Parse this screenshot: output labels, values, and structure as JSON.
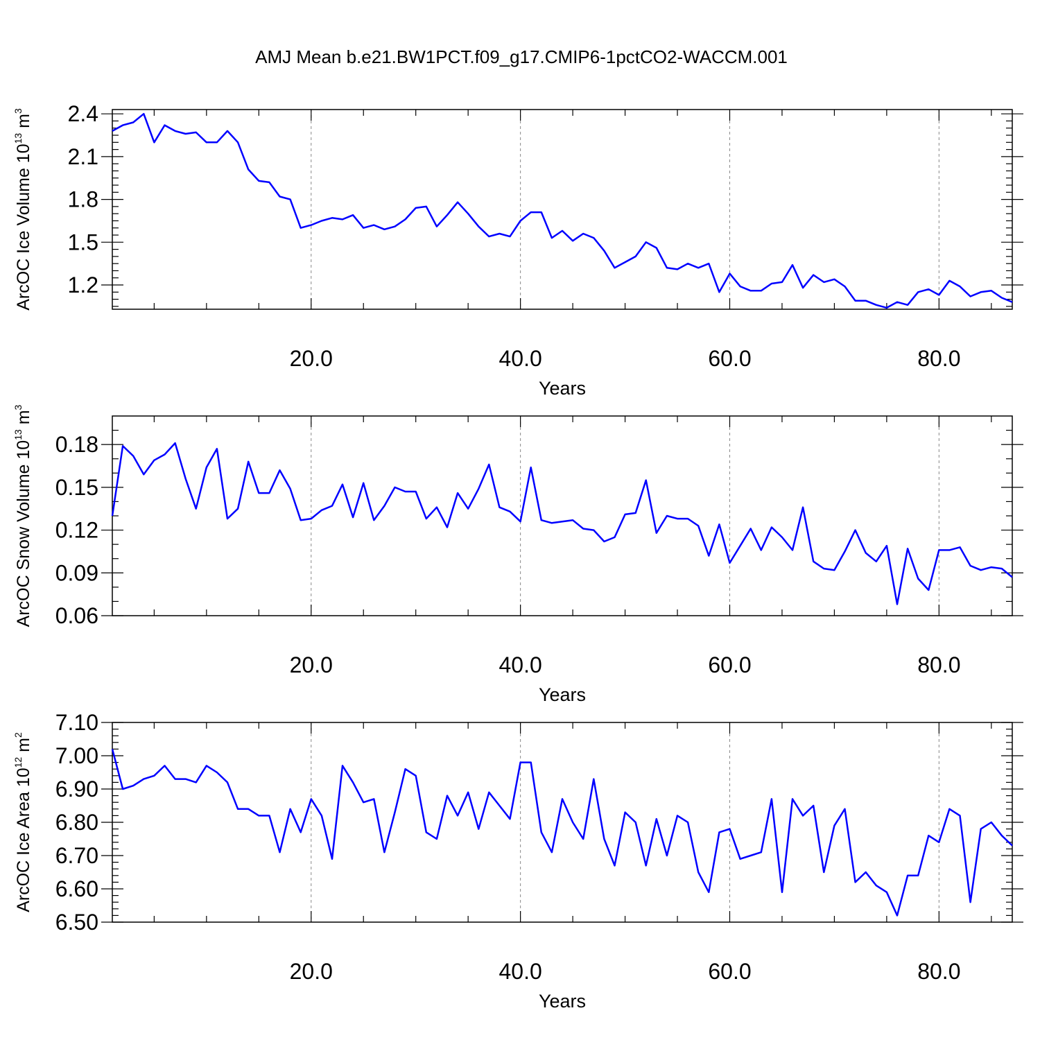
{
  "title": "AMJ Mean b.e21.BW1PCT.f09_g17.CMIP6-1pctCO2-WACCM.001",
  "colors": {
    "line": "#0000ff",
    "axis": "#000000",
    "grid": "#888888"
  },
  "chart_data": [
    {
      "type": "line",
      "xlabel": "Years",
      "ylabel": {
        "main": "ArcOC Ice Volume 10",
        "exp": "13",
        "unit": " m",
        "unit_exp": "3"
      },
      "xlim": [
        1,
        87
      ],
      "ylim": [
        1.03,
        2.43
      ],
      "xticks": [
        20,
        40,
        60,
        80
      ],
      "xtick_labels": [
        "20.0",
        "40.0",
        "60.0",
        "80.0"
      ],
      "yticks": [
        1.2,
        1.5,
        1.8,
        2.1,
        2.4
      ],
      "ytick_labels": [
        "1.2",
        "1.5",
        "1.8",
        "2.1",
        "2.4"
      ],
      "minor_yticks": [
        1.05,
        1.1,
        1.15,
        1.25,
        1.3,
        1.35,
        1.4,
        1.45,
        1.55,
        1.6,
        1.65,
        1.7,
        1.75,
        1.85,
        1.9,
        1.95,
        2.0,
        2.05,
        2.15,
        2.2,
        2.25,
        2.3,
        2.35
      ],
      "grid": "vertical dashed at major x ticks",
      "series": [
        {
          "x_start": 1,
          "values": [
            2.28,
            2.32,
            2.34,
            2.4,
            2.2,
            2.32,
            2.28,
            2.26,
            2.27,
            2.2,
            2.2,
            2.28,
            2.2,
            2.01,
            1.93,
            1.92,
            1.82,
            1.8,
            1.6,
            1.62,
            1.65,
            1.67,
            1.66,
            1.69,
            1.6,
            1.62,
            1.59,
            1.61,
            1.66,
            1.74,
            1.75,
            1.61,
            1.69,
            1.78,
            1.7,
            1.61,
            1.54,
            1.56,
            1.54,
            1.65,
            1.71,
            1.71,
            1.53,
            1.58,
            1.51,
            1.56,
            1.53,
            1.44,
            1.32,
            1.36,
            1.4,
            1.5,
            1.46,
            1.32,
            1.31,
            1.35,
            1.32,
            1.35,
            1.15,
            1.28,
            1.19,
            1.16,
            1.16,
            1.21,
            1.22,
            1.34,
            1.18,
            1.27,
            1.22,
            1.24,
            1.19,
            1.09,
            1.09,
            1.06,
            1.04,
            1.08,
            1.06,
            1.15,
            1.17,
            1.13,
            1.23,
            1.19,
            1.12,
            1.15,
            1.16,
            1.11,
            1.08
          ]
        }
      ]
    },
    {
      "type": "line",
      "xlabel": "Years",
      "ylabel": {
        "main": "ArcOC Snow Volume 10",
        "exp": "13",
        "unit": " m",
        "unit_exp": "3"
      },
      "xlim": [
        1,
        87
      ],
      "ylim": [
        0.06,
        0.2
      ],
      "xticks": [
        20,
        40,
        60,
        80
      ],
      "xtick_labels": [
        "20.0",
        "40.0",
        "60.0",
        "80.0"
      ],
      "yticks": [
        0.06,
        0.09,
        0.12,
        0.15,
        0.18
      ],
      "ytick_labels": [
        "0.06",
        "0.09",
        "0.12",
        "0.15",
        "0.18"
      ],
      "minor_yticks": [
        0.07,
        0.08,
        0.1,
        0.11,
        0.13,
        0.14,
        0.16,
        0.17,
        0.19
      ],
      "grid": "vertical dashed at major x ticks",
      "series": [
        {
          "x_start": 1,
          "values": [
            0.13,
            0.179,
            0.172,
            0.159,
            0.169,
            0.173,
            0.181,
            0.156,
            0.135,
            0.164,
            0.177,
            0.128,
            0.135,
            0.168,
            0.146,
            0.146,
            0.162,
            0.149,
            0.127,
            0.128,
            0.134,
            0.137,
            0.152,
            0.129,
            0.153,
            0.127,
            0.137,
            0.15,
            0.147,
            0.147,
            0.128,
            0.136,
            0.122,
            0.146,
            0.135,
            0.149,
            0.166,
            0.136,
            0.133,
            0.126,
            0.164,
            0.127,
            0.125,
            0.126,
            0.127,
            0.121,
            0.12,
            0.112,
            0.115,
            0.131,
            0.132,
            0.155,
            0.118,
            0.13,
            0.128,
            0.128,
            0.123,
            0.102,
            0.124,
            0.097,
            0.109,
            0.121,
            0.106,
            0.122,
            0.115,
            0.106,
            0.136,
            0.098,
            0.093,
            0.092,
            0.105,
            0.12,
            0.104,
            0.098,
            0.109,
            0.068,
            0.107,
            0.086,
            0.078,
            0.106,
            0.106,
            0.108,
            0.095,
            0.092,
            0.094,
            0.093,
            0.087
          ]
        }
      ]
    },
    {
      "type": "line",
      "xlabel": "Years",
      "ylabel": {
        "main": "ArcOC Ice Area 10",
        "exp": "12",
        "unit": " m",
        "unit_exp": "2"
      },
      "xlim": [
        1,
        87
      ],
      "ylim": [
        6.5,
        7.1
      ],
      "xticks": [
        20,
        40,
        60,
        80
      ],
      "xtick_labels": [
        "20.0",
        "40.0",
        "60.0",
        "80.0"
      ],
      "yticks": [
        6.5,
        6.6,
        6.7,
        6.8,
        6.9,
        7.0,
        7.1
      ],
      "ytick_labels": [
        "6.50",
        "6.60",
        "6.70",
        "6.80",
        "6.90",
        "7.00",
        "7.10"
      ],
      "minor_yticks": [
        6.52,
        6.54,
        6.56,
        6.58,
        6.62,
        6.64,
        6.66,
        6.68,
        6.72,
        6.74,
        6.76,
        6.78,
        6.82,
        6.84,
        6.86,
        6.88,
        6.92,
        6.94,
        6.96,
        6.98,
        7.02,
        7.04,
        7.06,
        7.08
      ],
      "grid": "vertical dashed at major x ticks",
      "series": [
        {
          "x_start": 1,
          "values": [
            7.02,
            6.9,
            6.91,
            6.93,
            6.94,
            6.97,
            6.93,
            6.93,
            6.92,
            6.97,
            6.95,
            6.92,
            6.84,
            6.84,
            6.82,
            6.82,
            6.71,
            6.84,
            6.77,
            6.87,
            6.82,
            6.69,
            6.97,
            6.92,
            6.86,
            6.87,
            6.71,
            6.83,
            6.96,
            6.94,
            6.77,
            6.75,
            6.88,
            6.82,
            6.89,
            6.78,
            6.89,
            6.85,
            6.81,
            6.98,
            6.98,
            6.77,
            6.71,
            6.87,
            6.8,
            6.75,
            6.93,
            6.75,
            6.67,
            6.83,
            6.8,
            6.67,
            6.81,
            6.7,
            6.82,
            6.8,
            6.65,
            6.59,
            6.77,
            6.78,
            6.69,
            6.7,
            6.71,
            6.87,
            6.59,
            6.87,
            6.82,
            6.85,
            6.65,
            6.79,
            6.84,
            6.62,
            6.65,
            6.61,
            6.59,
            6.52,
            6.64,
            6.64,
            6.76,
            6.74,
            6.84,
            6.82,
            6.56,
            6.78,
            6.8,
            6.76,
            6.73
          ]
        }
      ]
    }
  ]
}
